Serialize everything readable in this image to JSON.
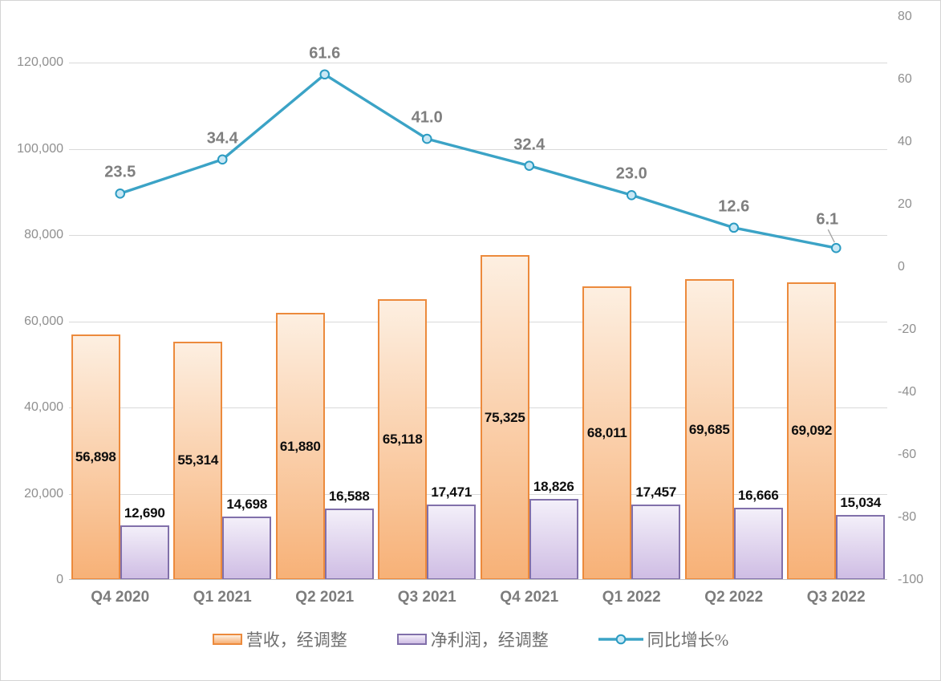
{
  "chart_data": {
    "type": "combo",
    "title": "",
    "categories": [
      "Q4 2020",
      "Q1 2021",
      "Q2 2021",
      "Q3 2021",
      "Q4 2021",
      "Q1 2022",
      "Q2 2022",
      "Q3 2022"
    ],
    "series": [
      {
        "name": "营收，经调整",
        "type": "bar",
        "axis": "left",
        "values": [
          56898,
          55314,
          61880,
          65118,
          75325,
          68011,
          69685,
          69092
        ],
        "labels": [
          "56,898",
          "55,314",
          "61,880",
          "65,118",
          "75,325",
          "68,011",
          "69,685",
          "69,092"
        ],
        "label_position": "center"
      },
      {
        "name": "净利润，经调整",
        "type": "bar",
        "axis": "left",
        "values": [
          12690,
          14698,
          16588,
          17471,
          18826,
          17457,
          16666,
          15034
        ],
        "labels": [
          "12,690",
          "14,698",
          "16,588",
          "17,471",
          "18,826",
          "17,457",
          "16,666",
          "15,034"
        ],
        "label_position": "outside-end"
      },
      {
        "name": "同比增长%",
        "type": "line",
        "axis": "right",
        "values": [
          23.5,
          34.4,
          61.6,
          41.0,
          32.4,
          23.0,
          12.6,
          6.1
        ],
        "labels": [
          "23.5",
          "34.4",
          "61.6",
          "41.0",
          "32.4",
          "23.0",
          "12.6",
          "6.1"
        ],
        "label_position": "above"
      }
    ],
    "left_axis": {
      "tick_labels": [
        "0",
        "20,000",
        "40,000",
        "60,000",
        "80,000",
        "100,000",
        "120,000"
      ],
      "tick_values": [
        0,
        20000,
        40000,
        60000,
        80000,
        100000,
        120000
      ],
      "min": 0,
      "labeled_max": 120000
    },
    "right_axis": {
      "tick_labels": [
        "80",
        "60",
        "40",
        "20",
        "0",
        "-20",
        "-40",
        "-60",
        "-80",
        "-100"
      ],
      "tick_values": [
        80,
        60,
        40,
        20,
        0,
        -20,
        -40,
        -60,
        -80,
        -100
      ],
      "min": -100,
      "max": 80
    },
    "grid": true,
    "legend_position": "bottom"
  },
  "colors": {
    "revenue_border": "#ec8a3c",
    "revenue_fill_top": "#fdefe1",
    "revenue_fill_bottom": "#f7b177",
    "profit_border": "#8170aa",
    "profit_fill_top": "#f3eff9",
    "profit_fill_bottom": "#cfbde4",
    "line": "#3ba3c6",
    "marker_fill": "#c9e8f5",
    "marker_border": "#2b9bc2",
    "grid": "#d9d9d9",
    "axis_line": "#c3c3c3",
    "axis_text": "#8f8f8f",
    "x_text": "#7c7c7c",
    "bar_label": "#0d0d0d",
    "line_label": "#7f7f7f",
    "leader": "#a6a6a6",
    "canvas_border": "#d4d4d4"
  }
}
